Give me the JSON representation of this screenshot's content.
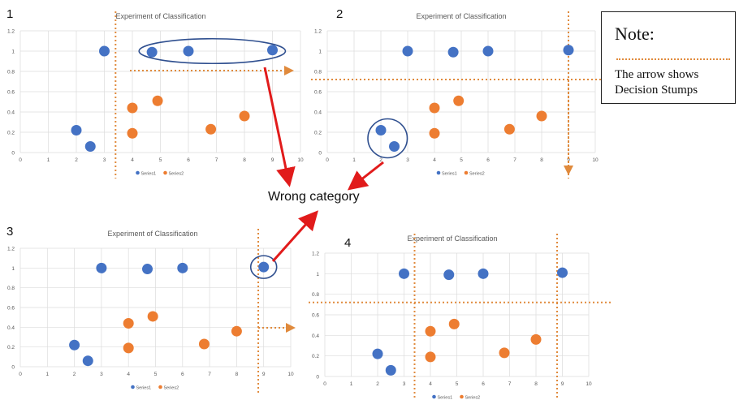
{
  "note": {
    "title": "Note:",
    "line1": "The arrow shows",
    "line2": "Decision Stumps"
  },
  "annotation": "Wrong category",
  "colors": {
    "series1": "#4472c4",
    "series2": "#ed7d31",
    "stump": "#e08a3c",
    "arrow": "#e11b1b",
    "ring": "#2f4f8f"
  },
  "chart_data": [
    {
      "panel_number": "1",
      "type": "scatter",
      "title": "Experiment of Classification",
      "xlim": [
        0,
        10
      ],
      "ylim": [
        0,
        1.2
      ],
      "x_ticks": [
        "0",
        "1",
        "2",
        "3",
        "4",
        "5",
        "6",
        "7",
        "8",
        "9",
        "10"
      ],
      "y_ticks": [
        "0",
        "0.2",
        "0.4",
        "0.6",
        "0.8",
        "1",
        "1.2"
      ],
      "legend": [
        "Series1",
        "Series2"
      ],
      "series": [
        {
          "name": "Series1",
          "points": [
            [
              2,
              0.22
            ],
            [
              2.5,
              0.06
            ],
            [
              3,
              1.0
            ],
            [
              4.7,
              0.99
            ],
            [
              6,
              1.0
            ],
            [
              9,
              1.01
            ]
          ]
        },
        {
          "name": "Series2",
          "points": [
            [
              4,
              0.44
            ],
            [
              4,
              0.19
            ],
            [
              4.9,
              0.51
            ],
            [
              6.8,
              0.23
            ],
            [
              8,
              0.36
            ]
          ]
        }
      ],
      "stumps": [
        {
          "orientation": "vertical",
          "value": 3.4
        }
      ],
      "highlight": [
        [
          4.7,
          0.99
        ],
        [
          6,
          1.0
        ],
        [
          9,
          1.01
        ]
      ]
    },
    {
      "panel_number": "2",
      "type": "scatter",
      "title": "Experiment of Classification",
      "xlim": [
        0,
        10
      ],
      "ylim": [
        0,
        1.2
      ],
      "x_ticks": [
        "0",
        "1",
        "2",
        "3",
        "4",
        "5",
        "6",
        "7",
        "8",
        "9",
        "10"
      ],
      "y_ticks": [
        "0",
        "0.2",
        "0.4",
        "0.6",
        "0.8",
        "1",
        "1.2"
      ],
      "legend": [
        "Series1",
        "Series2"
      ],
      "series": [
        {
          "name": "Series1",
          "points": [
            [
              2,
              0.22
            ],
            [
              2.5,
              0.06
            ],
            [
              3,
              1.0
            ],
            [
              4.7,
              0.99
            ],
            [
              6,
              1.0
            ],
            [
              9,
              1.01
            ]
          ]
        },
        {
          "name": "Series2",
          "points": [
            [
              4,
              0.44
            ],
            [
              4,
              0.19
            ],
            [
              4.9,
              0.51
            ],
            [
              6.8,
              0.23
            ],
            [
              8,
              0.36
            ]
          ]
        }
      ],
      "stumps": [
        {
          "orientation": "horizontal",
          "value": 0.72
        },
        {
          "orientation": "vertical",
          "value": 9
        }
      ],
      "highlight": [
        [
          2,
          0.22
        ],
        [
          2.5,
          0.06
        ]
      ]
    },
    {
      "panel_number": "3",
      "type": "scatter",
      "title": "Experiment of Classification",
      "xlim": [
        0,
        10
      ],
      "ylim": [
        0,
        1.2
      ],
      "x_ticks": [
        "0",
        "1",
        "2",
        "3",
        "4",
        "5",
        "6",
        "7",
        "8",
        "9",
        "10"
      ],
      "y_ticks": [
        "0",
        "0.2",
        "0.4",
        "0.6",
        "0.8",
        "1",
        "1.2"
      ],
      "legend": [
        "Series1",
        "Series2"
      ],
      "series": [
        {
          "name": "Series1",
          "points": [
            [
              2,
              0.22
            ],
            [
              2.5,
              0.06
            ],
            [
              3,
              1.0
            ],
            [
              4.7,
              0.99
            ],
            [
              6,
              1.0
            ],
            [
              9,
              1.01
            ]
          ]
        },
        {
          "name": "Series2",
          "points": [
            [
              4,
              0.44
            ],
            [
              4,
              0.19
            ],
            [
              4.9,
              0.51
            ],
            [
              6.8,
              0.23
            ],
            [
              8,
              0.36
            ]
          ]
        }
      ],
      "stumps": [
        {
          "orientation": "vertical",
          "value": 8.8
        }
      ],
      "highlight": [
        [
          9,
          1.01
        ]
      ]
    },
    {
      "panel_number": "4",
      "type": "scatter",
      "title": "Experiment of Classification",
      "xlim": [
        0,
        10
      ],
      "ylim": [
        0,
        1.2
      ],
      "x_ticks": [
        "0",
        "1",
        "2",
        "3",
        "4",
        "5",
        "6",
        "7",
        "8",
        "9",
        "10"
      ],
      "y_ticks": [
        "0",
        "0.2",
        "0.4",
        "0.6",
        "0.8",
        "1",
        "1.2"
      ],
      "legend": [
        "Series1",
        "Series2"
      ],
      "series": [
        {
          "name": "Series1",
          "points": [
            [
              2,
              0.22
            ],
            [
              2.5,
              0.06
            ],
            [
              3,
              1.0
            ],
            [
              4.7,
              0.99
            ],
            [
              6,
              1.0
            ],
            [
              9,
              1.01
            ]
          ]
        },
        {
          "name": "Series2",
          "points": [
            [
              4,
              0.44
            ],
            [
              4,
              0.19
            ],
            [
              4.9,
              0.51
            ],
            [
              6.8,
              0.23
            ],
            [
              8,
              0.36
            ]
          ]
        }
      ],
      "stumps": [
        {
          "orientation": "vertical",
          "value": 3.4
        },
        {
          "orientation": "horizontal",
          "value": 0.72
        },
        {
          "orientation": "vertical",
          "value": 8.8
        }
      ],
      "highlight": []
    }
  ]
}
